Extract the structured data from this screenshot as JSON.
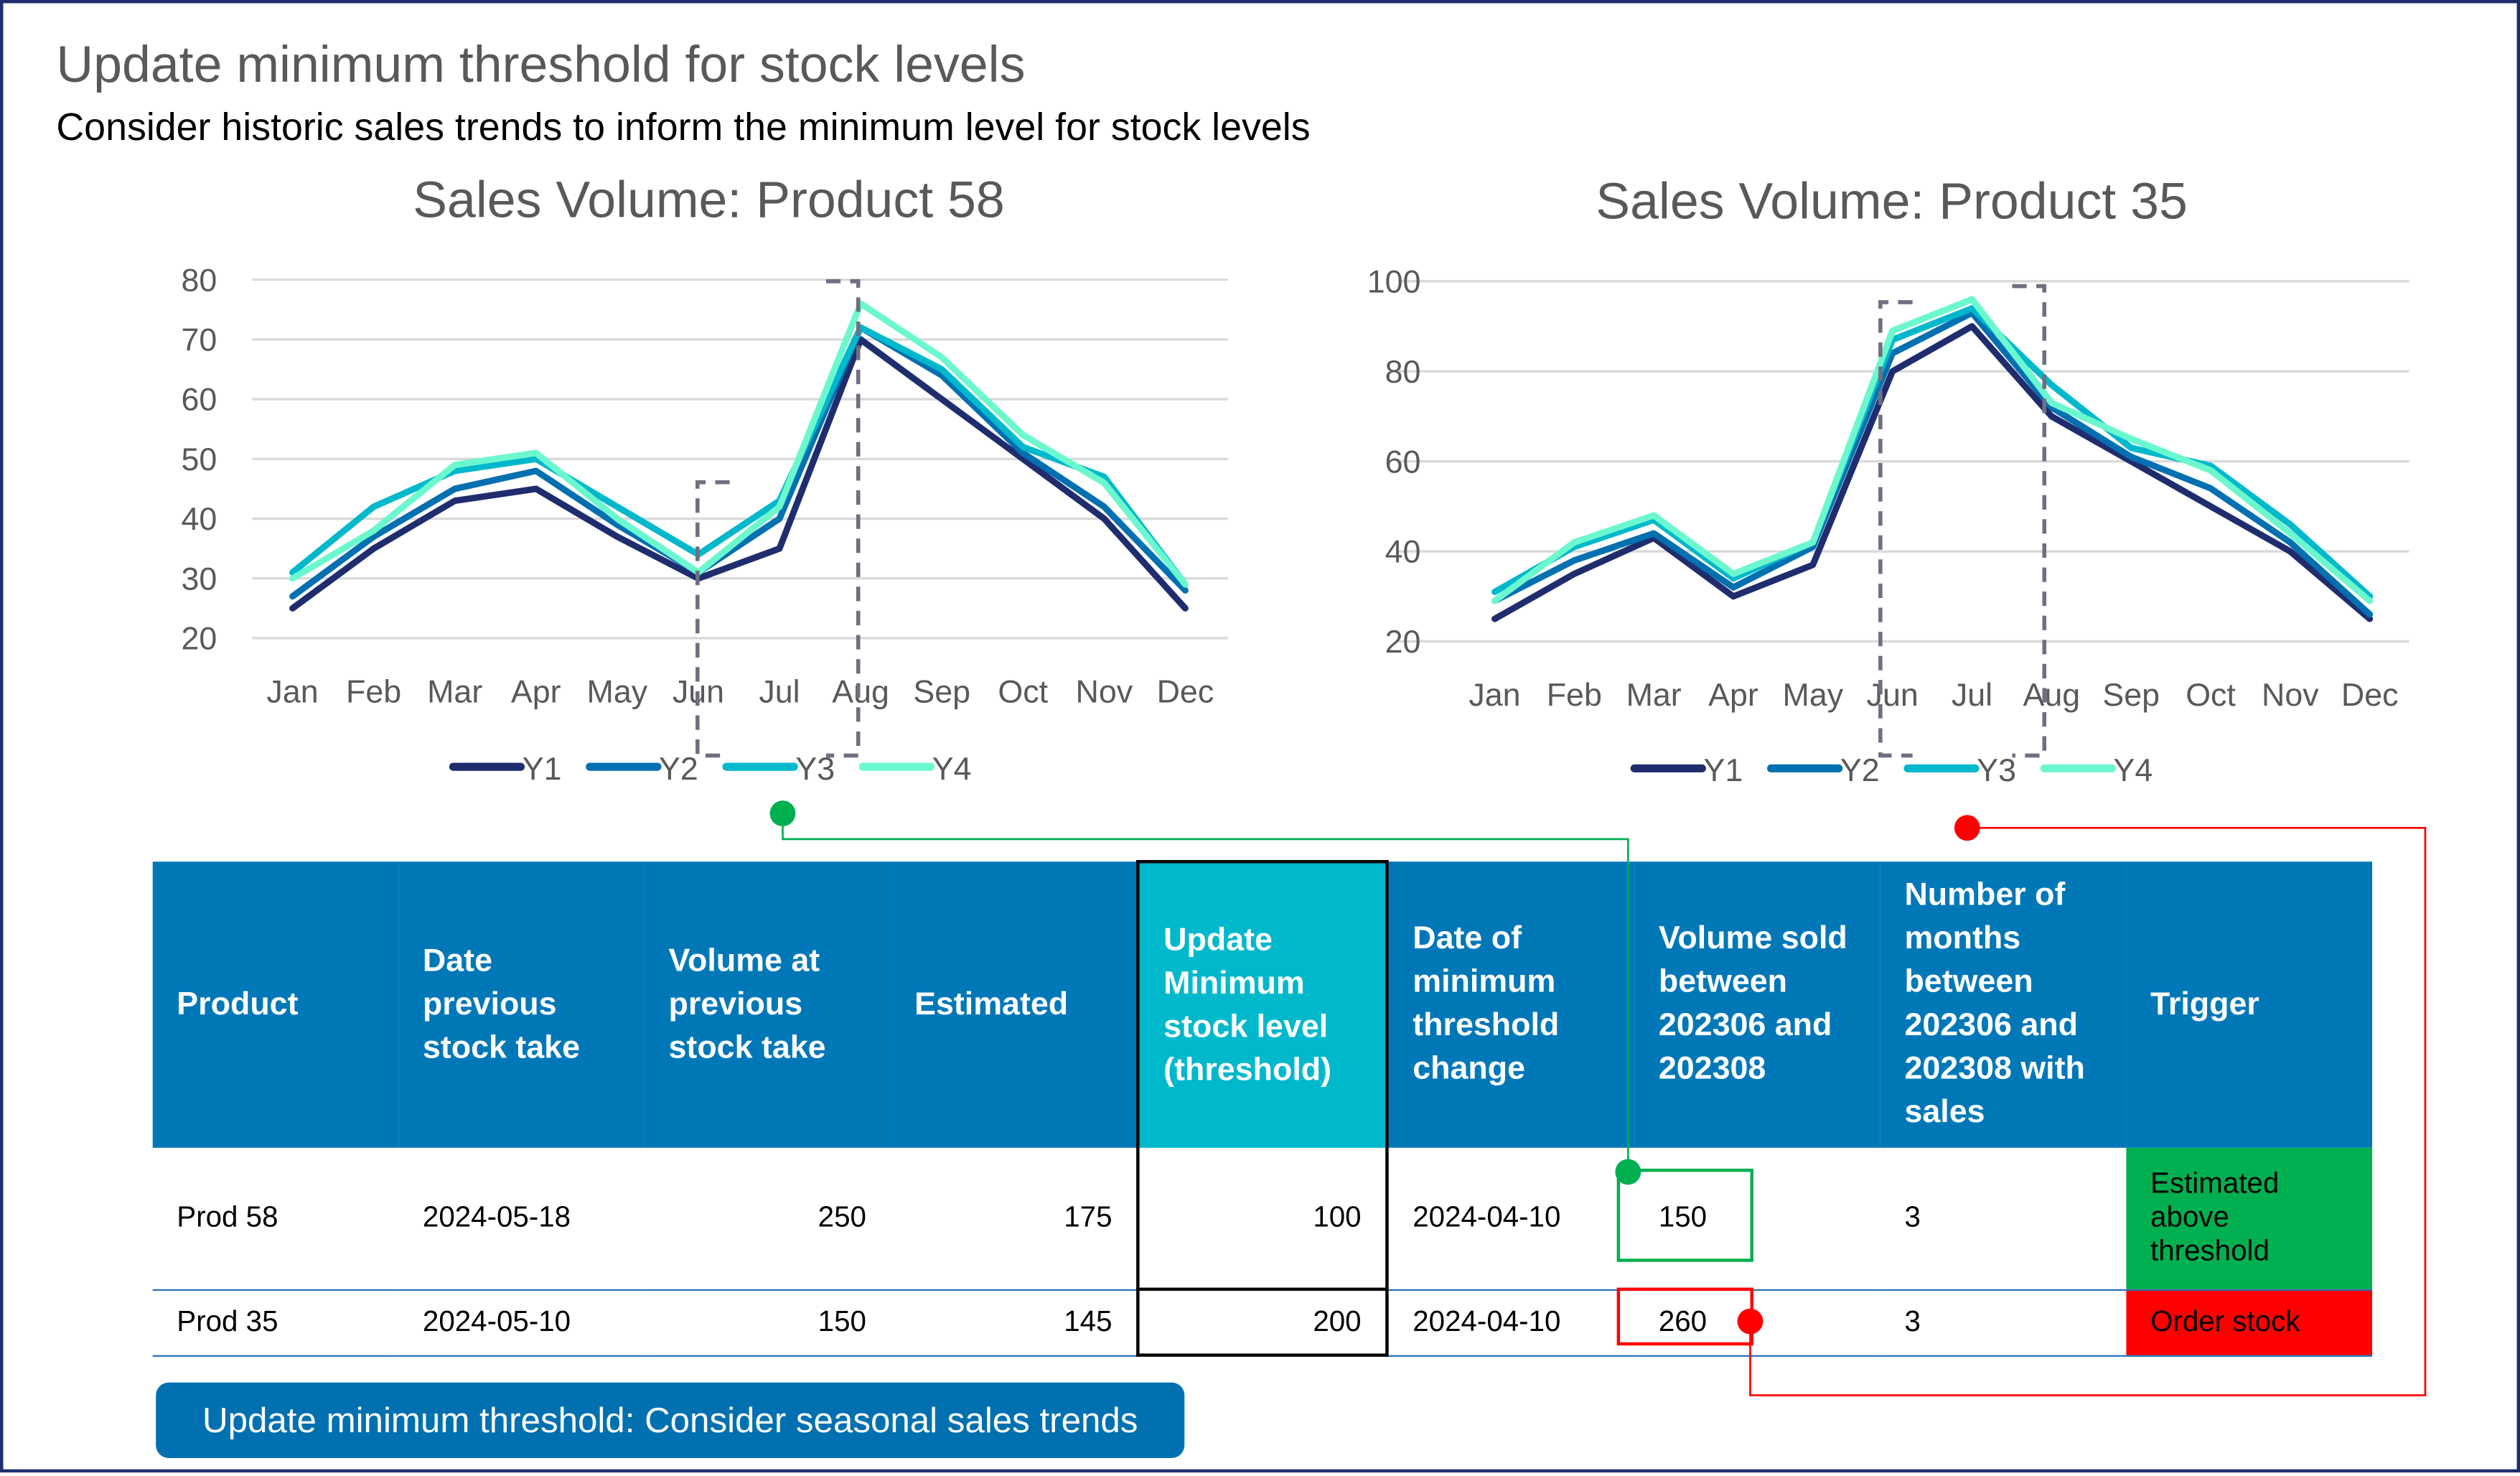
{
  "header": {
    "title": "Update minimum threshold for stock levels",
    "subtitle": "Consider historic sales trends to inform the minimum level for stock levels"
  },
  "colors": {
    "Y1": "#1f2d6e",
    "Y2": "#0070b0",
    "Y3": "#00b8cc",
    "Y4": "#6cf8cf",
    "header_bg": "#0078b8",
    "highlight": "#00b8cc",
    "trigger_ok": "#00b050",
    "trigger_alert": "#ff0000"
  },
  "chart_data": [
    {
      "type": "line",
      "title": "Sales Volume: Product 58",
      "categories": [
        "Jan",
        "Feb",
        "Mar",
        "Apr",
        "May",
        "Jun",
        "Jul",
        "Aug",
        "Sep",
        "Oct",
        "Nov",
        "Dec"
      ],
      "ylim": [
        20,
        80
      ],
      "yticks": [
        20,
        30,
        40,
        50,
        60,
        70,
        80
      ],
      "grid": true,
      "legend": "bottom",
      "highlight": [
        "Jun",
        "Aug"
      ],
      "series": [
        {
          "name": "Y1",
          "values": [
            25,
            35,
            43,
            45,
            37,
            30,
            35,
            70,
            60,
            50,
            40,
            25
          ]
        },
        {
          "name": "Y2",
          "values": [
            27,
            37,
            45,
            48,
            39,
            31,
            40,
            72,
            64,
            51,
            42,
            28
          ]
        },
        {
          "name": "Y3",
          "values": [
            31,
            42,
            48,
            50,
            42,
            34,
            43,
            72,
            65,
            52,
            47,
            29
          ]
        },
        {
          "name": "Y4",
          "values": [
            30,
            38,
            49,
            51,
            40,
            31,
            42,
            76,
            67,
            54,
            46,
            29
          ]
        }
      ]
    },
    {
      "type": "line",
      "title": "Sales Volume: Product 35",
      "categories": [
        "Jan",
        "Feb",
        "Mar",
        "Apr",
        "May",
        "Jun",
        "Jul",
        "Aug",
        "Sep",
        "Oct",
        "Nov",
        "Dec"
      ],
      "ylim": [
        20,
        100
      ],
      "yticks": [
        20,
        40,
        60,
        80,
        100
      ],
      "grid": true,
      "legend": "bottom",
      "highlight": [
        "Jun",
        "Aug"
      ],
      "series": [
        {
          "name": "Y1",
          "values": [
            25,
            35,
            43,
            30,
            37,
            80,
            90,
            70,
            60,
            50,
            40,
            25
          ]
        },
        {
          "name": "Y2",
          "values": [
            29,
            38,
            44,
            32,
            41,
            84,
            93,
            72,
            61,
            54,
            42,
            26
          ]
        },
        {
          "name": "Y3",
          "values": [
            31,
            41,
            47,
            34,
            42,
            87,
            94,
            77,
            63,
            59,
            46,
            30
          ]
        },
        {
          "name": "Y4",
          "values": [
            29,
            42,
            48,
            35,
            42,
            89,
            96,
            73,
            65,
            58,
            44,
            29
          ]
        }
      ]
    }
  ],
  "table": {
    "headers": [
      "Product",
      "Date previous stock take",
      "Volume at previous stock take",
      "Estimated",
      "Update Minimum stock level (threshold)",
      "Date of minimum threshold change",
      "Volume sold between 202306 and 202308",
      "Number of months between 202306 and 202308 with sales",
      "Trigger"
    ],
    "rows": [
      [
        "Prod 58",
        "2024-05-18",
        "250",
        "175",
        "100",
        "2024-04-10",
        "150",
        "3",
        "Estimated above threshold"
      ],
      [
        "Prod 35",
        "2024-05-10",
        "150",
        "145",
        "200",
        "2024-04-10",
        "260",
        "3",
        "Order stock"
      ]
    ]
  },
  "button": {
    "label": "Update minimum threshold: Consider seasonal sales trends"
  }
}
